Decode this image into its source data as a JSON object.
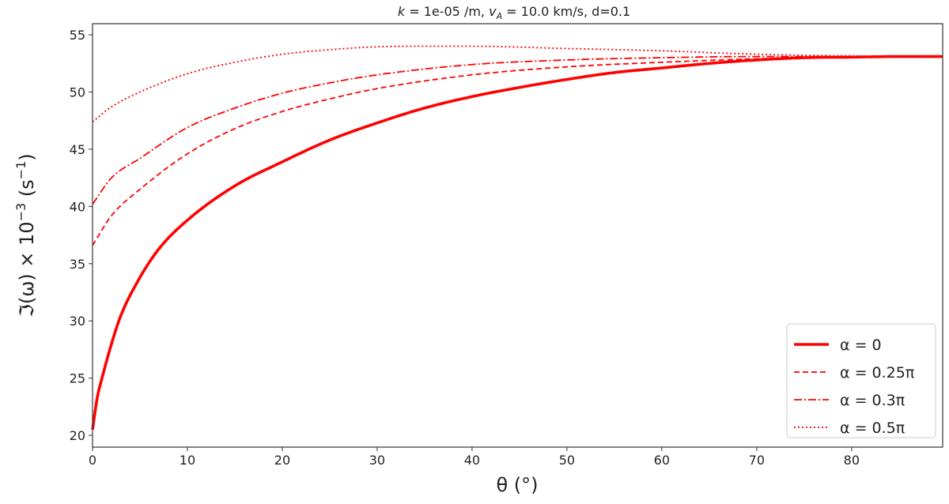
{
  "chart_data": {
    "type": "line",
    "title": "k = 1e-05 /m, v_A = 10.0 km/s, d=0.1",
    "title_parts": {
      "k": "k",
      "eq1": " = 1e-05 /m, ",
      "v": "v",
      "vsub": "A",
      "eq2": " = 10.0 km/s, d=0.1"
    },
    "xlabel": "θ (°)",
    "ylabel": "ℑ(ω) × 10⁻³ (s⁻¹)",
    "ylabel_parts": {
      "main": "ℑ(ω) × 10",
      "sup": "−3",
      "unit": " (s",
      "unitsup": "−1",
      "close": ")"
    },
    "xlim": [
      0,
      89.6
    ],
    "ylim": [
      18.97,
      55.97
    ],
    "xticks": [
      0,
      10,
      20,
      30,
      40,
      50,
      60,
      70,
      80
    ],
    "yticks": [
      20,
      25,
      30,
      35,
      40,
      45,
      50,
      55
    ],
    "grid": false,
    "legend_placement": "bottom-right",
    "color": "#ff0000",
    "series": [
      {
        "name": "α = 0",
        "style": "solid",
        "x": [
          0,
          0.5,
          1,
          2,
          3,
          5,
          7,
          10,
          15,
          20,
          25,
          30,
          35,
          40,
          45,
          50,
          55,
          60,
          65,
          70,
          75,
          80,
          85,
          89.6
        ],
        "y": [
          20.5,
          23.3,
          25.0,
          28.0,
          30.5,
          33.8,
          36.3,
          38.8,
          41.8,
          43.9,
          45.8,
          47.3,
          48.6,
          49.6,
          50.4,
          51.1,
          51.7,
          52.1,
          52.5,
          52.8,
          53.0,
          53.05,
          53.1,
          53.1
        ]
      },
      {
        "name": "α = 0.25π",
        "style": "dashed",
        "x": [
          0,
          2,
          5,
          10,
          15,
          20,
          25,
          30,
          40,
          50,
          60,
          70,
          80,
          89.6
        ],
        "y": [
          36.6,
          39.2,
          41.5,
          44.6,
          46.8,
          48.3,
          49.4,
          50.3,
          51.5,
          52.2,
          52.6,
          52.9,
          53.05,
          53.1
        ]
      },
      {
        "name": "α = 0.3π",
        "style": "dashdot",
        "x": [
          0,
          2,
          5,
          10,
          15,
          20,
          25,
          30,
          40,
          50,
          60,
          70,
          80,
          89.6
        ],
        "y": [
          40.2,
          42.5,
          44.2,
          46.9,
          48.6,
          49.9,
          50.8,
          51.5,
          52.4,
          52.8,
          53.0,
          53.1,
          53.1,
          53.1
        ]
      },
      {
        "name": "α = 0.5π",
        "style": "dotted",
        "x": [
          0,
          2,
          5,
          10,
          15,
          20,
          25,
          30,
          35,
          40,
          50,
          60,
          70,
          80,
          89.6
        ],
        "y": [
          47.4,
          48.7,
          50.0,
          51.6,
          52.6,
          53.3,
          53.7,
          53.95,
          54.0,
          54.0,
          53.8,
          53.6,
          53.3,
          53.15,
          53.1
        ]
      }
    ]
  }
}
